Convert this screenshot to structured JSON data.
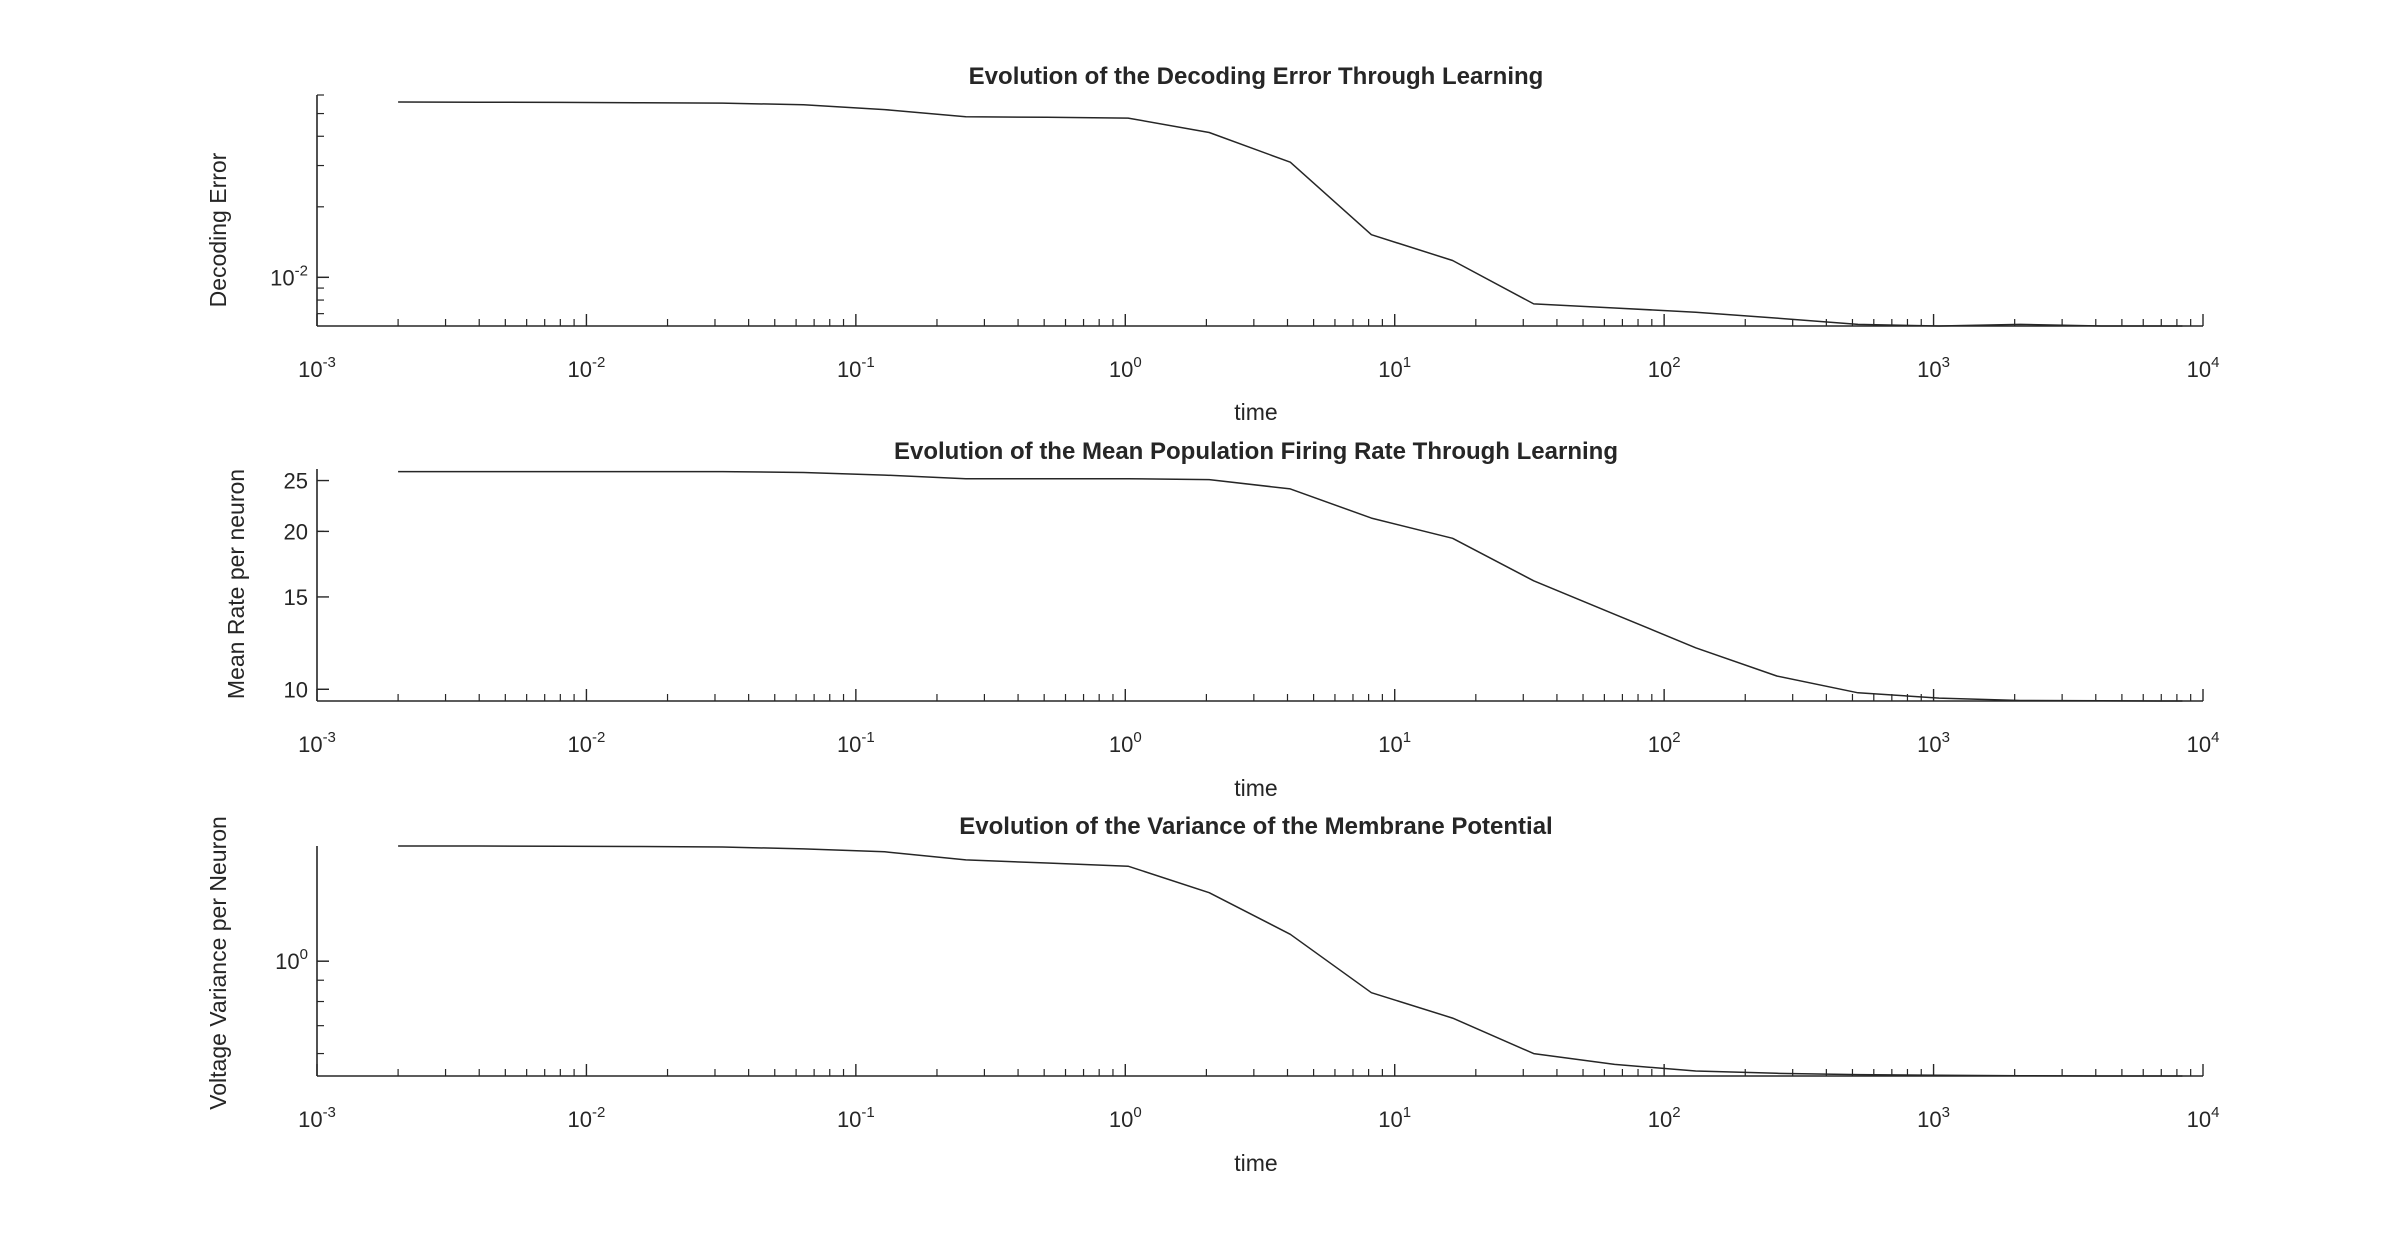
{
  "chart_data": [
    {
      "type": "line",
      "title": "Evolution of the Decoding Error Through Learning",
      "xlabel": "time",
      "ylabel": "Decoding Error",
      "xscale": "log",
      "yscale": "log",
      "xlim": [
        0.001,
        10000
      ],
      "ylim": [
        0.0062,
        0.06
      ],
      "x_tick_labels": [
        {
          "base": "10",
          "exp": "-3"
        },
        {
          "base": "10",
          "exp": "-2"
        },
        {
          "base": "10",
          "exp": "-1"
        },
        {
          "base": "10",
          "exp": "0"
        },
        {
          "base": "10",
          "exp": "1"
        },
        {
          "base": "10",
          "exp": "2"
        },
        {
          "base": "10",
          "exp": "3"
        },
        {
          "base": "10",
          "exp": "4"
        }
      ],
      "y_tick_labels": [
        {
          "base": "10",
          "exp": "-2",
          "value": 0.01
        }
      ],
      "series": [
        {
          "x": [
            0.002,
            0.004,
            0.008,
            0.016,
            0.032,
            0.064,
            0.128,
            0.256,
            0.512,
            1.024,
            2.048,
            4.096,
            8.19,
            16.4,
            32.8,
            65.5,
            131,
            262,
            524,
            1049,
            2097,
            4194,
            8389
          ],
          "y": [
            0.056,
            0.0559,
            0.0558,
            0.0556,
            0.0554,
            0.0545,
            0.052,
            0.0485,
            0.0482,
            0.0478,
            0.0415,
            0.031,
            0.0152,
            0.0118,
            0.0077,
            0.0074,
            0.0071,
            0.0067,
            0.0063,
            0.0062,
            0.0063,
            0.0062,
            0.0062
          ]
        }
      ],
      "grid": false,
      "line_color": "#262626"
    },
    {
      "type": "line",
      "title": "Evolution of the Mean Population Firing Rate Through Learning",
      "xlabel": "time",
      "ylabel": "Mean Rate per neuron",
      "xscale": "log",
      "yscale": "log",
      "xlim": [
        0.001,
        10000
      ],
      "ylim": [
        9.5,
        26.3
      ],
      "x_tick_labels": [
        {
          "base": "10",
          "exp": "-3"
        },
        {
          "base": "10",
          "exp": "-2"
        },
        {
          "base": "10",
          "exp": "-1"
        },
        {
          "base": "10",
          "exp": "0"
        },
        {
          "base": "10",
          "exp": "1"
        },
        {
          "base": "10",
          "exp": "2"
        },
        {
          "base": "10",
          "exp": "3"
        },
        {
          "base": "10",
          "exp": "4"
        }
      ],
      "y_tick_labels": [
        {
          "text": "10",
          "value": 10
        },
        {
          "text": "15",
          "value": 15
        },
        {
          "text": "20",
          "value": 20
        },
        {
          "text": "25",
          "value": 25
        }
      ],
      "series": [
        {
          "x": [
            0.002,
            0.004,
            0.008,
            0.016,
            0.032,
            0.064,
            0.128,
            0.256,
            0.512,
            1.024,
            2.048,
            4.096,
            8.19,
            16.4,
            32.8,
            65.5,
            131,
            262,
            524,
            1049,
            2097,
            4194,
            8389
          ],
          "y": [
            26.0,
            26.0,
            26.0,
            26.0,
            26.0,
            25.9,
            25.6,
            25.2,
            25.2,
            25.2,
            25.1,
            24.1,
            21.2,
            19.4,
            16.1,
            13.9,
            12.0,
            10.6,
            9.85,
            9.62,
            9.52,
            9.51,
            9.5
          ]
        }
      ],
      "grid": false,
      "line_color": "#262626"
    },
    {
      "type": "line",
      "title": "Evolution of the Variance of the Membrane Potential",
      "xlabel": "time",
      "ylabel": "Voltage Variance per Neuron",
      "xscale": "log",
      "yscale": "log",
      "xlim": [
        0.001,
        10000
      ],
      "ylim": [
        0.53,
        1.89
      ],
      "x_tick_labels": [
        {
          "base": "10",
          "exp": "-3"
        },
        {
          "base": "10",
          "exp": "-2"
        },
        {
          "base": "10",
          "exp": "-1"
        },
        {
          "base": "10",
          "exp": "0"
        },
        {
          "base": "10",
          "exp": "1"
        },
        {
          "base": "10",
          "exp": "2"
        },
        {
          "base": "10",
          "exp": "3"
        },
        {
          "base": "10",
          "exp": "4"
        }
      ],
      "y_tick_labels": [
        {
          "base": "10",
          "exp": "0",
          "value": 1
        }
      ],
      "series": [
        {
          "x": [
            0.002,
            0.004,
            0.008,
            0.016,
            0.032,
            0.064,
            0.128,
            0.256,
            0.512,
            1.024,
            2.048,
            4.096,
            8.19,
            16.4,
            32.8,
            65.5,
            131,
            262,
            524,
            1049,
            2097,
            4194,
            8389
          ],
          "y": [
            1.89,
            1.89,
            1.888,
            1.885,
            1.88,
            1.86,
            1.83,
            1.75,
            1.72,
            1.69,
            1.46,
            1.16,
            0.84,
            0.73,
            0.6,
            0.565,
            0.545,
            0.538,
            0.534,
            0.532,
            0.531,
            0.53,
            0.53
          ]
        }
      ],
      "grid": false,
      "line_color": "#262626"
    }
  ]
}
